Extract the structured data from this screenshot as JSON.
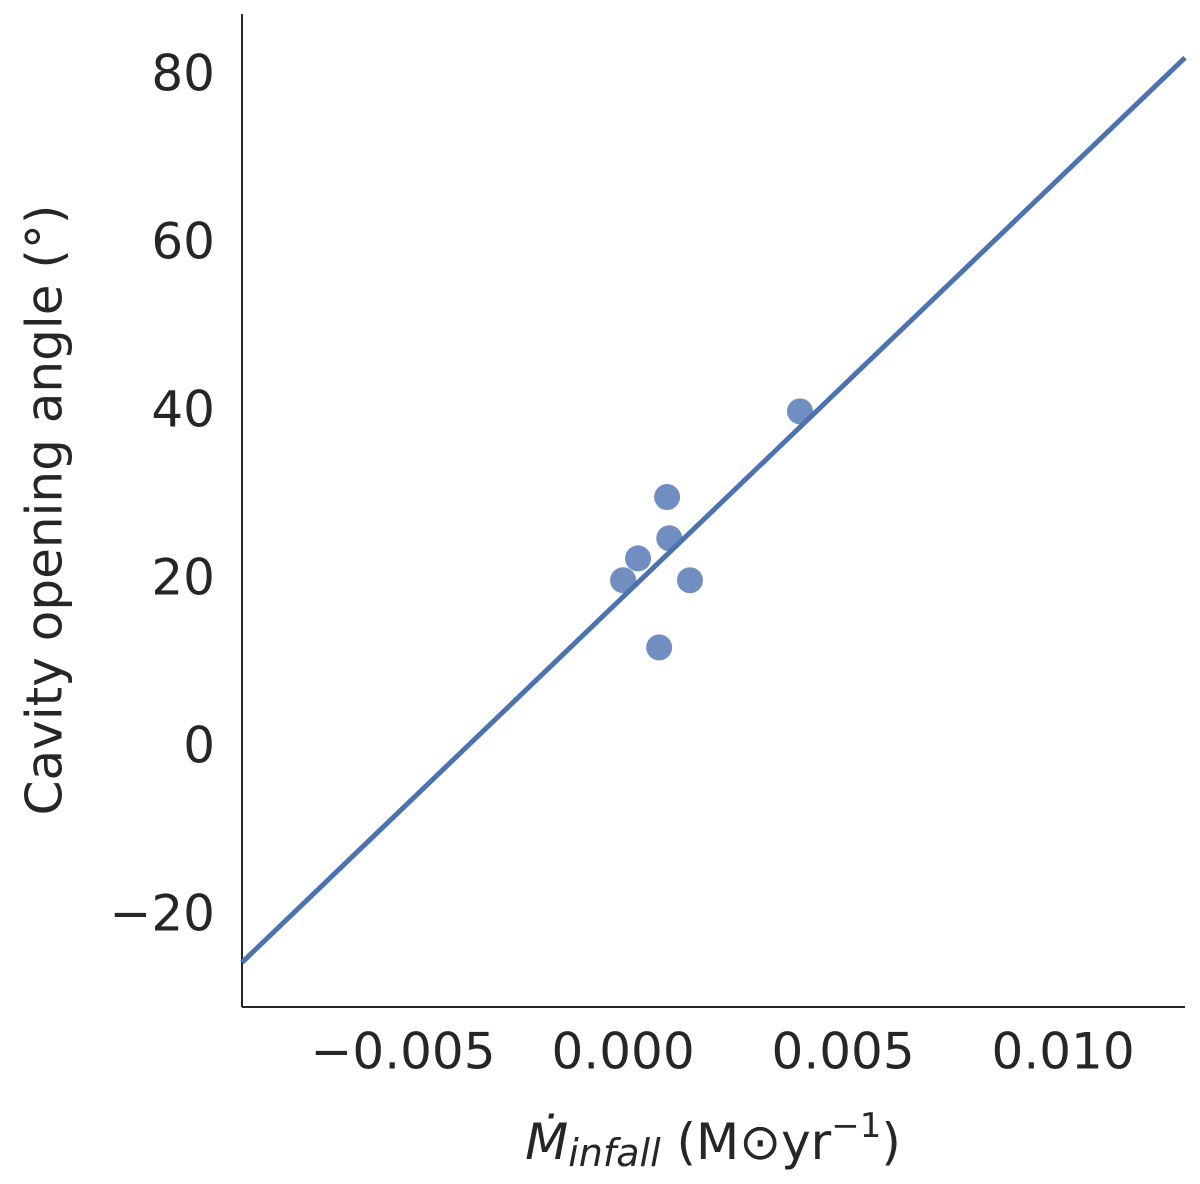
{
  "chart_data": {
    "type": "scatter",
    "ylabel": "Cavity opening angle (°)",
    "xlabel": {
      "symbol": "Ṁ",
      "subscript": "infall",
      "unit": " (M⊙yr",
      "superscript": "−1",
      "close": ")"
    },
    "color": "#4c72b0",
    "points": {
      "x": [
        0.0,
        0.00034,
        0.001,
        0.00105,
        0.00152,
        0.00082,
        0.00402
      ],
      "values": [
        20.1,
        22.7,
        30,
        25.1,
        20.1,
        12.1,
        40.2
      ]
    },
    "fit_line": {
      "x": [
        -0.00866,
        0.01277
      ],
      "values": [
        -25.4,
        82.3
      ]
    },
    "xlim": [
      -0.00866,
      0.01277
    ],
    "ylim": [
      -30.7,
      87.5
    ],
    "xticks": [
      {
        "value": -0.005,
        "label": "−0.005"
      },
      {
        "value": 0,
        "label": "0.000"
      },
      {
        "value": 0.005,
        "label": "0.005"
      },
      {
        "value": 0.01,
        "label": "0.010"
      }
    ],
    "yticks": [
      {
        "value": -20,
        "label": "−20"
      },
      0,
      20,
      40,
      60,
      80
    ],
    "grid": false
  }
}
